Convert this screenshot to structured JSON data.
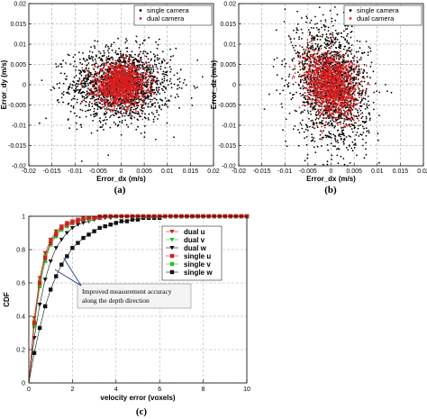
{
  "chart_data": [
    {
      "type": "scatter",
      "panel_label": "(a)",
      "xlabel": "Error_dx (m/s)",
      "ylabel": "Error_dy (m/s)",
      "xlim": [
        -0.02,
        0.02
      ],
      "ylim": [
        -0.02,
        0.02
      ],
      "xticks": [
        "-0.02",
        "-0.015",
        "-0.01",
        "-0.005",
        "0",
        "0.005",
        "0.01",
        "0.015",
        "0.02"
      ],
      "yticks": [
        "-0.02",
        "-0.015",
        "-0.01",
        "-0.005",
        "0",
        "0.005",
        "0.01",
        "0.015",
        "0.02"
      ],
      "grid": true,
      "legend_position": "top-right",
      "series": [
        {
          "name": "single camera",
          "color": "#000000",
          "marker": "dot",
          "center": [
            0.0,
            0.0
          ],
          "spread": [
            0.0055,
            0.0045
          ]
        },
        {
          "name": "dual camera",
          "color": "#d81e1e",
          "marker": "dot",
          "center": [
            0.0,
            0.0
          ],
          "spread": [
            0.0028,
            0.0025
          ]
        }
      ]
    },
    {
      "type": "scatter",
      "panel_label": "(b)",
      "xlabel": "Error_dx (m/s)",
      "ylabel": "Error_dz (m/s)",
      "xlim": [
        -0.02,
        0.02
      ],
      "ylim": [
        -0.02,
        0.02
      ],
      "xticks": [
        "-0.02",
        "-0.015",
        "-0.01",
        "-0.005",
        "0",
        "0.005",
        "0.01",
        "0.015",
        "0.02"
      ],
      "yticks": [
        "-0.02",
        "-0.015",
        "-0.01",
        "-0.005",
        "0",
        "0.005",
        "0.01",
        "0.015",
        "0.02"
      ],
      "grid": true,
      "legend_position": "top-right",
      "series": [
        {
          "name": "single camera",
          "color": "#000000",
          "marker": "dot",
          "center": [
            0.0,
            0.0
          ],
          "spread": [
            0.004,
            0.0075
          ]
        },
        {
          "name": "dual camera",
          "color": "#d81e1e",
          "marker": "dot",
          "center": [
            0.0,
            0.0
          ],
          "spread": [
            0.0028,
            0.004
          ]
        }
      ]
    },
    {
      "type": "line",
      "panel_label": "(c)",
      "xlabel": "velocity error (voxels)",
      "ylabel": "CDF",
      "xlim": [
        0,
        10
      ],
      "ylim": [
        0,
        1
      ],
      "xticks": [
        "0",
        "2",
        "4",
        "6",
        "8",
        "10"
      ],
      "yticks": [
        "0",
        "0.2",
        "0.4",
        "0.6",
        "0.8",
        "1"
      ],
      "grid": true,
      "legend_position": "right",
      "x": [
        0,
        0.25,
        0.5,
        0.75,
        1,
        1.25,
        1.5,
        1.75,
        2,
        2.25,
        2.5,
        2.75,
        3,
        3.25,
        3.5,
        3.75,
        4,
        4.25,
        4.5,
        4.75,
        5,
        5.25,
        5.5,
        5.75,
        6,
        6.25,
        6.5,
        6.75,
        7,
        7.25,
        7.5,
        7.75,
        8,
        8.25,
        8.5,
        8.75,
        9,
        9.25,
        9.5,
        9.75,
        10
      ],
      "series": [
        {
          "name": "dual u",
          "color": "#cc2222",
          "marker": "triangle-down",
          "values": [
            0,
            0.39,
            0.63,
            0.78,
            0.86,
            0.91,
            0.94,
            0.96,
            0.97,
            0.98,
            0.99,
            0.99,
            0.99,
            1,
            1,
            1,
            1,
            1,
            1,
            1,
            1,
            1,
            1,
            1,
            1,
            1,
            1,
            1,
            1,
            1,
            1,
            1,
            1,
            1,
            1,
            1,
            1,
            1,
            1,
            1,
            1
          ]
        },
        {
          "name": "dual v",
          "color": "#2bbf2b",
          "marker": "triangle-down",
          "values": [
            0,
            0.37,
            0.61,
            0.76,
            0.85,
            0.9,
            0.93,
            0.95,
            0.97,
            0.98,
            0.98,
            0.99,
            0.99,
            1,
            1,
            1,
            1,
            1,
            1,
            1,
            1,
            1,
            1,
            1,
            1,
            1,
            1,
            1,
            1,
            1,
            1,
            1,
            1,
            1,
            1,
            1,
            1,
            1,
            1,
            1,
            1
          ]
        },
        {
          "name": "dual w",
          "color": "#111111",
          "marker": "triangle-down",
          "values": [
            0,
            0.27,
            0.47,
            0.62,
            0.73,
            0.81,
            0.86,
            0.9,
            0.93,
            0.95,
            0.96,
            0.97,
            0.98,
            0.99,
            0.99,
            0.99,
            1,
            1,
            1,
            1,
            1,
            1,
            1,
            1,
            1,
            1,
            1,
            1,
            1,
            1,
            1,
            1,
            1,
            1,
            1,
            1,
            1,
            1,
            1,
            1,
            1
          ]
        },
        {
          "name": "single u",
          "color": "#cc2222",
          "marker": "square",
          "values": [
            0,
            0.36,
            0.6,
            0.75,
            0.84,
            0.89,
            0.93,
            0.95,
            0.96,
            0.97,
            0.98,
            0.99,
            0.99,
            0.99,
            1,
            1,
            1,
            1,
            1,
            1,
            1,
            1,
            1,
            1,
            1,
            1,
            1,
            1,
            1,
            1,
            1,
            1,
            1,
            1,
            1,
            1,
            1,
            1,
            1,
            1,
            1
          ]
        },
        {
          "name": "single v",
          "color": "#2bbf2b",
          "marker": "square",
          "values": [
            0,
            0.34,
            0.58,
            0.73,
            0.83,
            0.88,
            0.92,
            0.94,
            0.96,
            0.97,
            0.98,
            0.98,
            0.99,
            0.99,
            1,
            1,
            1,
            1,
            1,
            1,
            1,
            1,
            1,
            1,
            1,
            1,
            1,
            1,
            1,
            1,
            1,
            1,
            1,
            1,
            1,
            1,
            1,
            1,
            1,
            1,
            1
          ]
        },
        {
          "name": "single w",
          "color": "#111111",
          "marker": "square",
          "values": [
            0,
            0.18,
            0.33,
            0.46,
            0.56,
            0.64,
            0.71,
            0.76,
            0.81,
            0.84,
            0.87,
            0.89,
            0.91,
            0.93,
            0.94,
            0.95,
            0.96,
            0.97,
            0.97,
            0.98,
            0.98,
            0.99,
            0.99,
            0.99,
            0.99,
            1,
            1,
            1,
            1,
            1,
            1,
            1,
            1,
            1,
            1,
            1,
            1,
            1,
            1,
            1,
            1
          ]
        }
      ],
      "annotation": {
        "lines": [
          "Improved measurement accuracy",
          "along the depth direction"
        ],
        "arrow_targets": [
          [
            1.6,
            0.75
          ],
          [
            1.2,
            0.68
          ]
        ]
      }
    }
  ]
}
